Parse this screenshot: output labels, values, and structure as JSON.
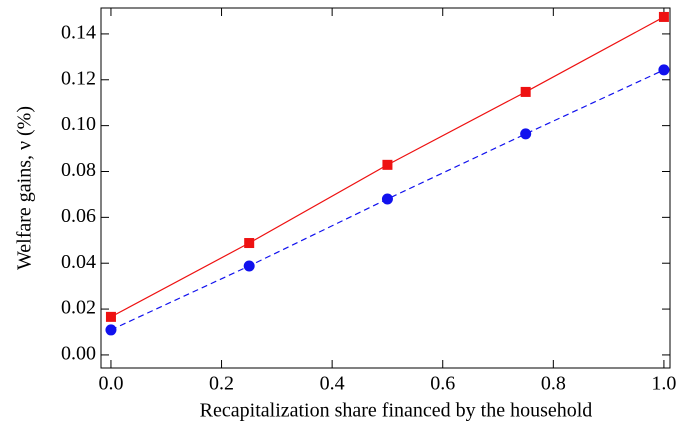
{
  "chart_data": {
    "type": "line",
    "x_label": "Recapitalization share financed by the household",
    "y_label": "Welfare gains, ν (%)",
    "x": [
      0,
      0.25,
      0.5,
      0.75,
      1
    ],
    "series": [
      {
        "color": "#ee1111",
        "line": "solid",
        "marker": "square",
        "values": [
          0.0166,
          0.0488,
          0.0829,
          0.1147,
          0.1474
        ]
      },
      {
        "color": "#1111ee",
        "line": "dashed",
        "marker": "circle",
        "values": [
          0.0109,
          0.0388,
          0.068,
          0.0964,
          0.1243
        ]
      }
    ],
    "xlim": [
      -0.018,
      1.011
    ],
    "ylim": [
      -0.0057,
      0.1513
    ],
    "xticks": [
      {
        "value": 0,
        "label": "0.0"
      },
      {
        "value": 0.2,
        "label": "0.2"
      },
      {
        "value": 0.4,
        "label": "0.4"
      },
      {
        "value": 0.6,
        "label": "0.6"
      },
      {
        "value": 0.8,
        "label": "0.8"
      },
      {
        "value": 1,
        "label": "1.0"
      }
    ],
    "yticks": [
      {
        "value": 0,
        "label": "0.00"
      },
      {
        "value": 0.02,
        "label": "0.02"
      },
      {
        "value": 0.04,
        "label": "0.04"
      },
      {
        "value": 0.06,
        "label": "0.06"
      },
      {
        "value": 0.08,
        "label": "0.08"
      },
      {
        "value": 0.1,
        "label": "0.10"
      },
      {
        "value": 0.12,
        "label": "0.12"
      },
      {
        "value": 0.14,
        "label": "0.14"
      }
    ]
  }
}
